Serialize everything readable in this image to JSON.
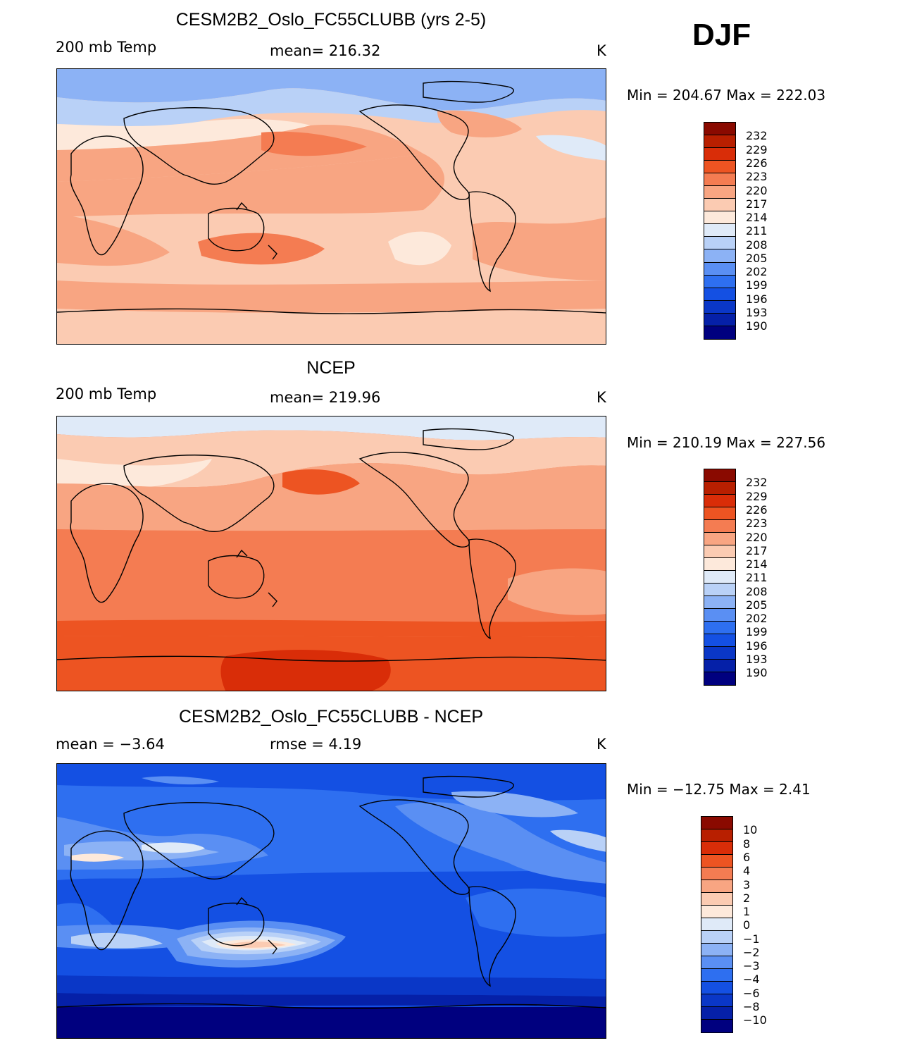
{
  "season": "DJF",
  "units": "K",
  "palette": {
    "model_obs": [
      "#00007f",
      "#0520a8",
      "#0a37c7",
      "#1450e3",
      "#2e6ff0",
      "#5a8ff3",
      "#8cb2f5",
      "#b9d1f7",
      "#dfeaf8",
      "#fde9db",
      "#fbcbb2",
      "#f8a582",
      "#f47c52",
      "#ed5422",
      "#d92d08",
      "#b81f00",
      "#8a0a00"
    ],
    "diff": [
      "#00007f",
      "#0520a8",
      "#0a37c7",
      "#1450e3",
      "#2e6ff0",
      "#5a8ff3",
      "#8cb2f5",
      "#b9d1f7",
      "#dfeaf8",
      "#fde9db",
      "#fbcbb2",
      "#f8a582",
      "#f47c52",
      "#ed5422",
      "#d92d08",
      "#b81f00",
      "#8a0a00"
    ]
  },
  "panels": [
    {
      "id": "model",
      "title": "CESM2B2_Oslo_FC55CLUBB (yrs 2-5)",
      "left_label": "200 mb Temp",
      "center_label": "mean=  216.32",
      "units": "K",
      "minmax": "Min  =  204.67  Max  =  222.03",
      "levels": [
        "232",
        "229",
        "226",
        "223",
        "220",
        "217",
        "214",
        "211",
        "208",
        "205",
        "202",
        "199",
        "196",
        "193",
        "190"
      ]
    },
    {
      "id": "obs",
      "title": "NCEP",
      "left_label": "200 mb Temp",
      "center_label": "mean=  219.96",
      "units": "K",
      "minmax": "Min  =  210.19  Max  =  227.56",
      "levels": [
        "232",
        "229",
        "226",
        "223",
        "220",
        "217",
        "214",
        "211",
        "208",
        "205",
        "202",
        "199",
        "196",
        "193",
        "190"
      ]
    },
    {
      "id": "diff",
      "title": "CESM2B2_Oslo_FC55CLUBB - NCEP",
      "left_label": "mean  =    −3.64",
      "center_label": "rmse  =     4.19",
      "units": "K",
      "minmax": "Min  =  −12.75  Max  =      2.41",
      "levels": [
        "10",
        "8",
        "6",
        "4",
        "3",
        "2",
        "1",
        "0",
        "−1",
        "−2",
        "−3",
        "−4",
        "−6",
        "−8",
        "−10"
      ]
    }
  ]
}
